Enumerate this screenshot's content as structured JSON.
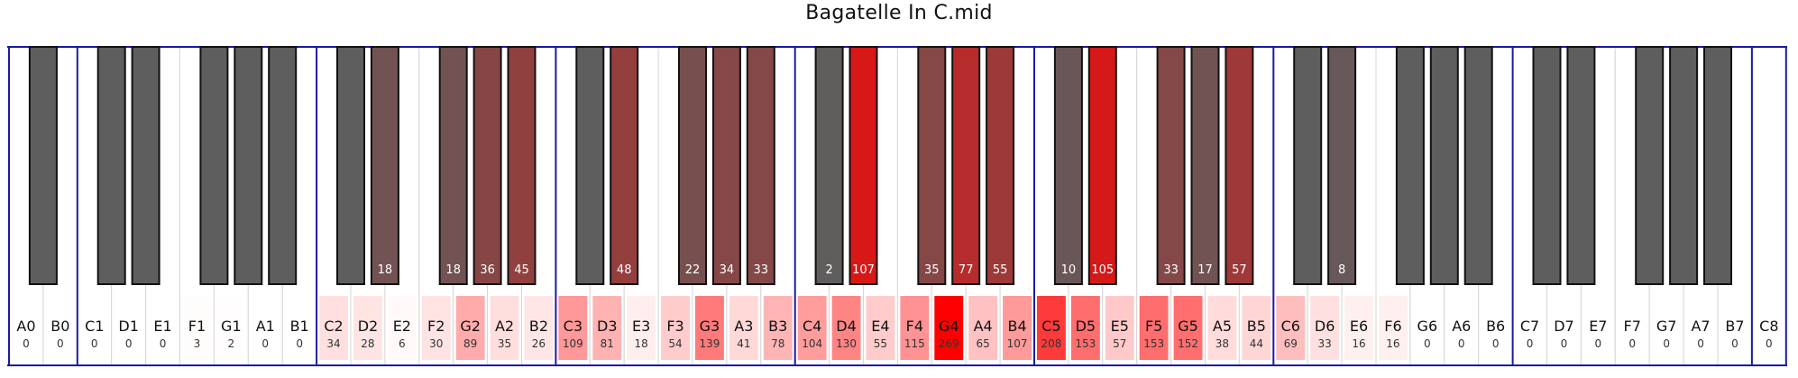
{
  "window": {
    "title": "Bagatelle In C.mid"
  },
  "colors": {
    "heat": "#ff0000",
    "white_key": "#ffffff",
    "black_key": "#5e5e5e",
    "octave_line": "#1a1aa6",
    "key_border": "#d6d6d6"
  },
  "chart_data": {
    "type": "heatmap",
    "title": "Bagatelle In C.mid",
    "max_count": 269,
    "white_keys": [
      {
        "name": "A0",
        "count": 0
      },
      {
        "name": "B0",
        "count": 0
      },
      {
        "name": "C1",
        "count": 0
      },
      {
        "name": "D1",
        "count": 0
      },
      {
        "name": "E1",
        "count": 0
      },
      {
        "name": "F1",
        "count": 3
      },
      {
        "name": "G1",
        "count": 2
      },
      {
        "name": "A1",
        "count": 0
      },
      {
        "name": "B1",
        "count": 0
      },
      {
        "name": "C2",
        "count": 34
      },
      {
        "name": "D2",
        "count": 28
      },
      {
        "name": "E2",
        "count": 6
      },
      {
        "name": "F2",
        "count": 30
      },
      {
        "name": "G2",
        "count": 89
      },
      {
        "name": "A2",
        "count": 35
      },
      {
        "name": "B2",
        "count": 26
      },
      {
        "name": "C3",
        "count": 109
      },
      {
        "name": "D3",
        "count": 81
      },
      {
        "name": "E3",
        "count": 18
      },
      {
        "name": "F3",
        "count": 54
      },
      {
        "name": "G3",
        "count": 139
      },
      {
        "name": "A3",
        "count": 41
      },
      {
        "name": "B3",
        "count": 78
      },
      {
        "name": "C4",
        "count": 104
      },
      {
        "name": "D4",
        "count": 130
      },
      {
        "name": "E4",
        "count": 55
      },
      {
        "name": "F4",
        "count": 115
      },
      {
        "name": "G4",
        "count": 269
      },
      {
        "name": "A4",
        "count": 65
      },
      {
        "name": "B4",
        "count": 107
      },
      {
        "name": "C5",
        "count": 208
      },
      {
        "name": "D5",
        "count": 153
      },
      {
        "name": "E5",
        "count": 57
      },
      {
        "name": "F5",
        "count": 153
      },
      {
        "name": "G5",
        "count": 152
      },
      {
        "name": "A5",
        "count": 38
      },
      {
        "name": "B5",
        "count": 44
      },
      {
        "name": "C6",
        "count": 69
      },
      {
        "name": "D6",
        "count": 33
      },
      {
        "name": "E6",
        "count": 16
      },
      {
        "name": "F6",
        "count": 16
      },
      {
        "name": "G6",
        "count": 0
      },
      {
        "name": "A6",
        "count": 0
      },
      {
        "name": "B6",
        "count": 0
      },
      {
        "name": "C7",
        "count": 0
      },
      {
        "name": "D7",
        "count": 0
      },
      {
        "name": "E7",
        "count": 0
      },
      {
        "name": "F7",
        "count": 0
      },
      {
        "name": "G7",
        "count": 0
      },
      {
        "name": "A7",
        "count": 0
      },
      {
        "name": "B7",
        "count": 0
      },
      {
        "name": "C8",
        "count": 0
      }
    ],
    "black_keys": [
      {
        "name": "A#0",
        "count": 0
      },
      {
        "name": "C#1",
        "count": 0
      },
      {
        "name": "D#1",
        "count": 0
      },
      {
        "name": "F#1",
        "count": 0
      },
      {
        "name": "G#1",
        "count": 0
      },
      {
        "name": "A#1",
        "count": 0
      },
      {
        "name": "C#2",
        "count": 0
      },
      {
        "name": "D#2",
        "count": 18
      },
      {
        "name": "F#2",
        "count": 18
      },
      {
        "name": "G#2",
        "count": 36
      },
      {
        "name": "A#2",
        "count": 45
      },
      {
        "name": "C#3",
        "count": 0
      },
      {
        "name": "D#3",
        "count": 48
      },
      {
        "name": "F#3",
        "count": 22
      },
      {
        "name": "G#3",
        "count": 34
      },
      {
        "name": "A#3",
        "count": 33
      },
      {
        "name": "C#4",
        "count": 2
      },
      {
        "name": "D#4",
        "count": 107
      },
      {
        "name": "F#4",
        "count": 35
      },
      {
        "name": "G#4",
        "count": 77
      },
      {
        "name": "A#4",
        "count": 55
      },
      {
        "name": "C#5",
        "count": 10
      },
      {
        "name": "D#5",
        "count": 105
      },
      {
        "name": "F#5",
        "count": 33
      },
      {
        "name": "G#5",
        "count": 17
      },
      {
        "name": "A#5",
        "count": 57
      },
      {
        "name": "C#6",
        "count": 0
      },
      {
        "name": "D#6",
        "count": 8
      },
      {
        "name": "F#6",
        "count": 0
      },
      {
        "name": "G#6",
        "count": 0
      },
      {
        "name": "A#6",
        "count": 0
      },
      {
        "name": "C#7",
        "count": 0
      },
      {
        "name": "D#7",
        "count": 0
      },
      {
        "name": "F#7",
        "count": 0
      },
      {
        "name": "G#7",
        "count": 0
      },
      {
        "name": "A#7",
        "count": 0
      }
    ]
  }
}
